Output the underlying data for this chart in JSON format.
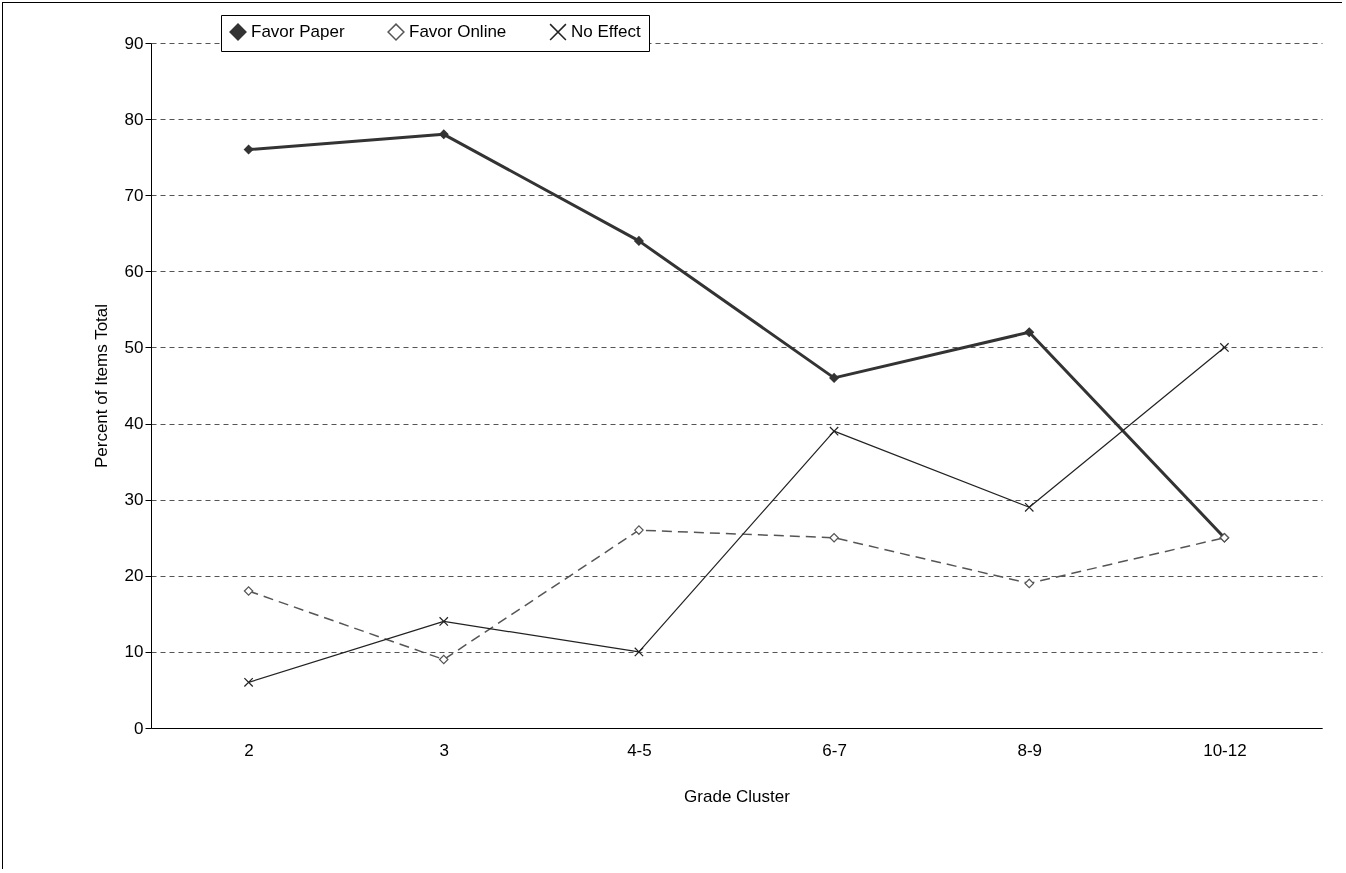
{
  "chart_data": {
    "type": "line",
    "xlabel": "Grade Cluster",
    "ylabel": "Percent of Items Total",
    "categories": [
      "2",
      "3",
      "4-5",
      "6-7",
      "8-9",
      "10-12"
    ],
    "series": [
      {
        "name": "Favor Paper",
        "color": "#333333",
        "marker": "diamond",
        "line_style": "solid",
        "values": [
          76,
          78,
          64,
          46,
          52,
          25
        ]
      },
      {
        "name": "Favor Online",
        "color": "#555555",
        "marker": "diamond",
        "line_style": "dashed",
        "values": [
          18,
          9,
          26,
          25,
          19,
          25
        ]
      },
      {
        "name": "No Effect",
        "color": "#222222",
        "marker": "cross",
        "line_style": "solid",
        "values": [
          6,
          14,
          10,
          39,
          29,
          50
        ]
      }
    ],
    "ylim": [
      0,
      90
    ],
    "yticks": [
      0,
      10,
      20,
      30,
      40,
      50,
      60,
      70,
      80,
      90
    ],
    "grid": "y",
    "legend": "top"
  }
}
